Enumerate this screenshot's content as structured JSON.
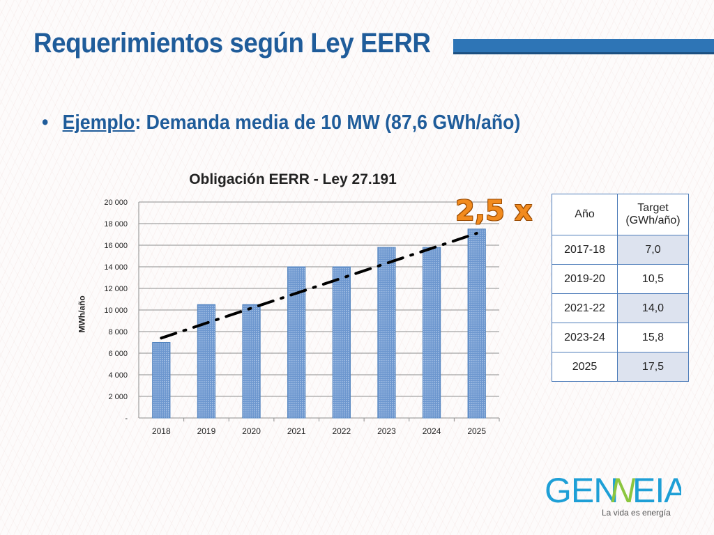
{
  "slide": {
    "title": "Requerimientos según Ley EERR",
    "bullet_symbol": "•",
    "bullet_key": "Ejemplo",
    "bullet_rest": ": Demanda media de 10 MW (87,6 GWh/año)",
    "multiplier": "2,5 x"
  },
  "chart_data": {
    "type": "bar",
    "title": "Obligación EERR - Ley 27.191",
    "xlabel": "",
    "ylabel": "MWh/año",
    "categories": [
      "2018",
      "2019",
      "2020",
      "2021",
      "2022",
      "2023",
      "2024",
      "2025"
    ],
    "values": [
      7000,
      10500,
      10500,
      14000,
      14000,
      15800,
      15800,
      17500
    ],
    "ylim": [
      0,
      20000
    ],
    "yticks": [
      "-",
      "2 000",
      "4 000",
      "6 000",
      "8 000",
      "10 000",
      "12 000",
      "14 000",
      "16 000",
      "18 000",
      "20 000"
    ],
    "grid": true,
    "bar_color": "#4f81bd",
    "trendline": {
      "style": "dash-dot",
      "color": "#000000",
      "y_start": 7400,
      "y_end": 17100
    }
  },
  "table": {
    "headers": [
      "Año",
      "Target\n(GWh/año)"
    ],
    "rows": [
      [
        "2017-18",
        "7,0"
      ],
      [
        "2019-20",
        "10,5"
      ],
      [
        "2021-22",
        "14,0"
      ],
      [
        "2023-24",
        "15,8"
      ],
      [
        "2025",
        "17,5"
      ]
    ]
  },
  "logo": {
    "brand": "GENNEIA",
    "tagline": "La vida es energía",
    "color": "#1e9fd6",
    "accent": "#8cc63f"
  }
}
